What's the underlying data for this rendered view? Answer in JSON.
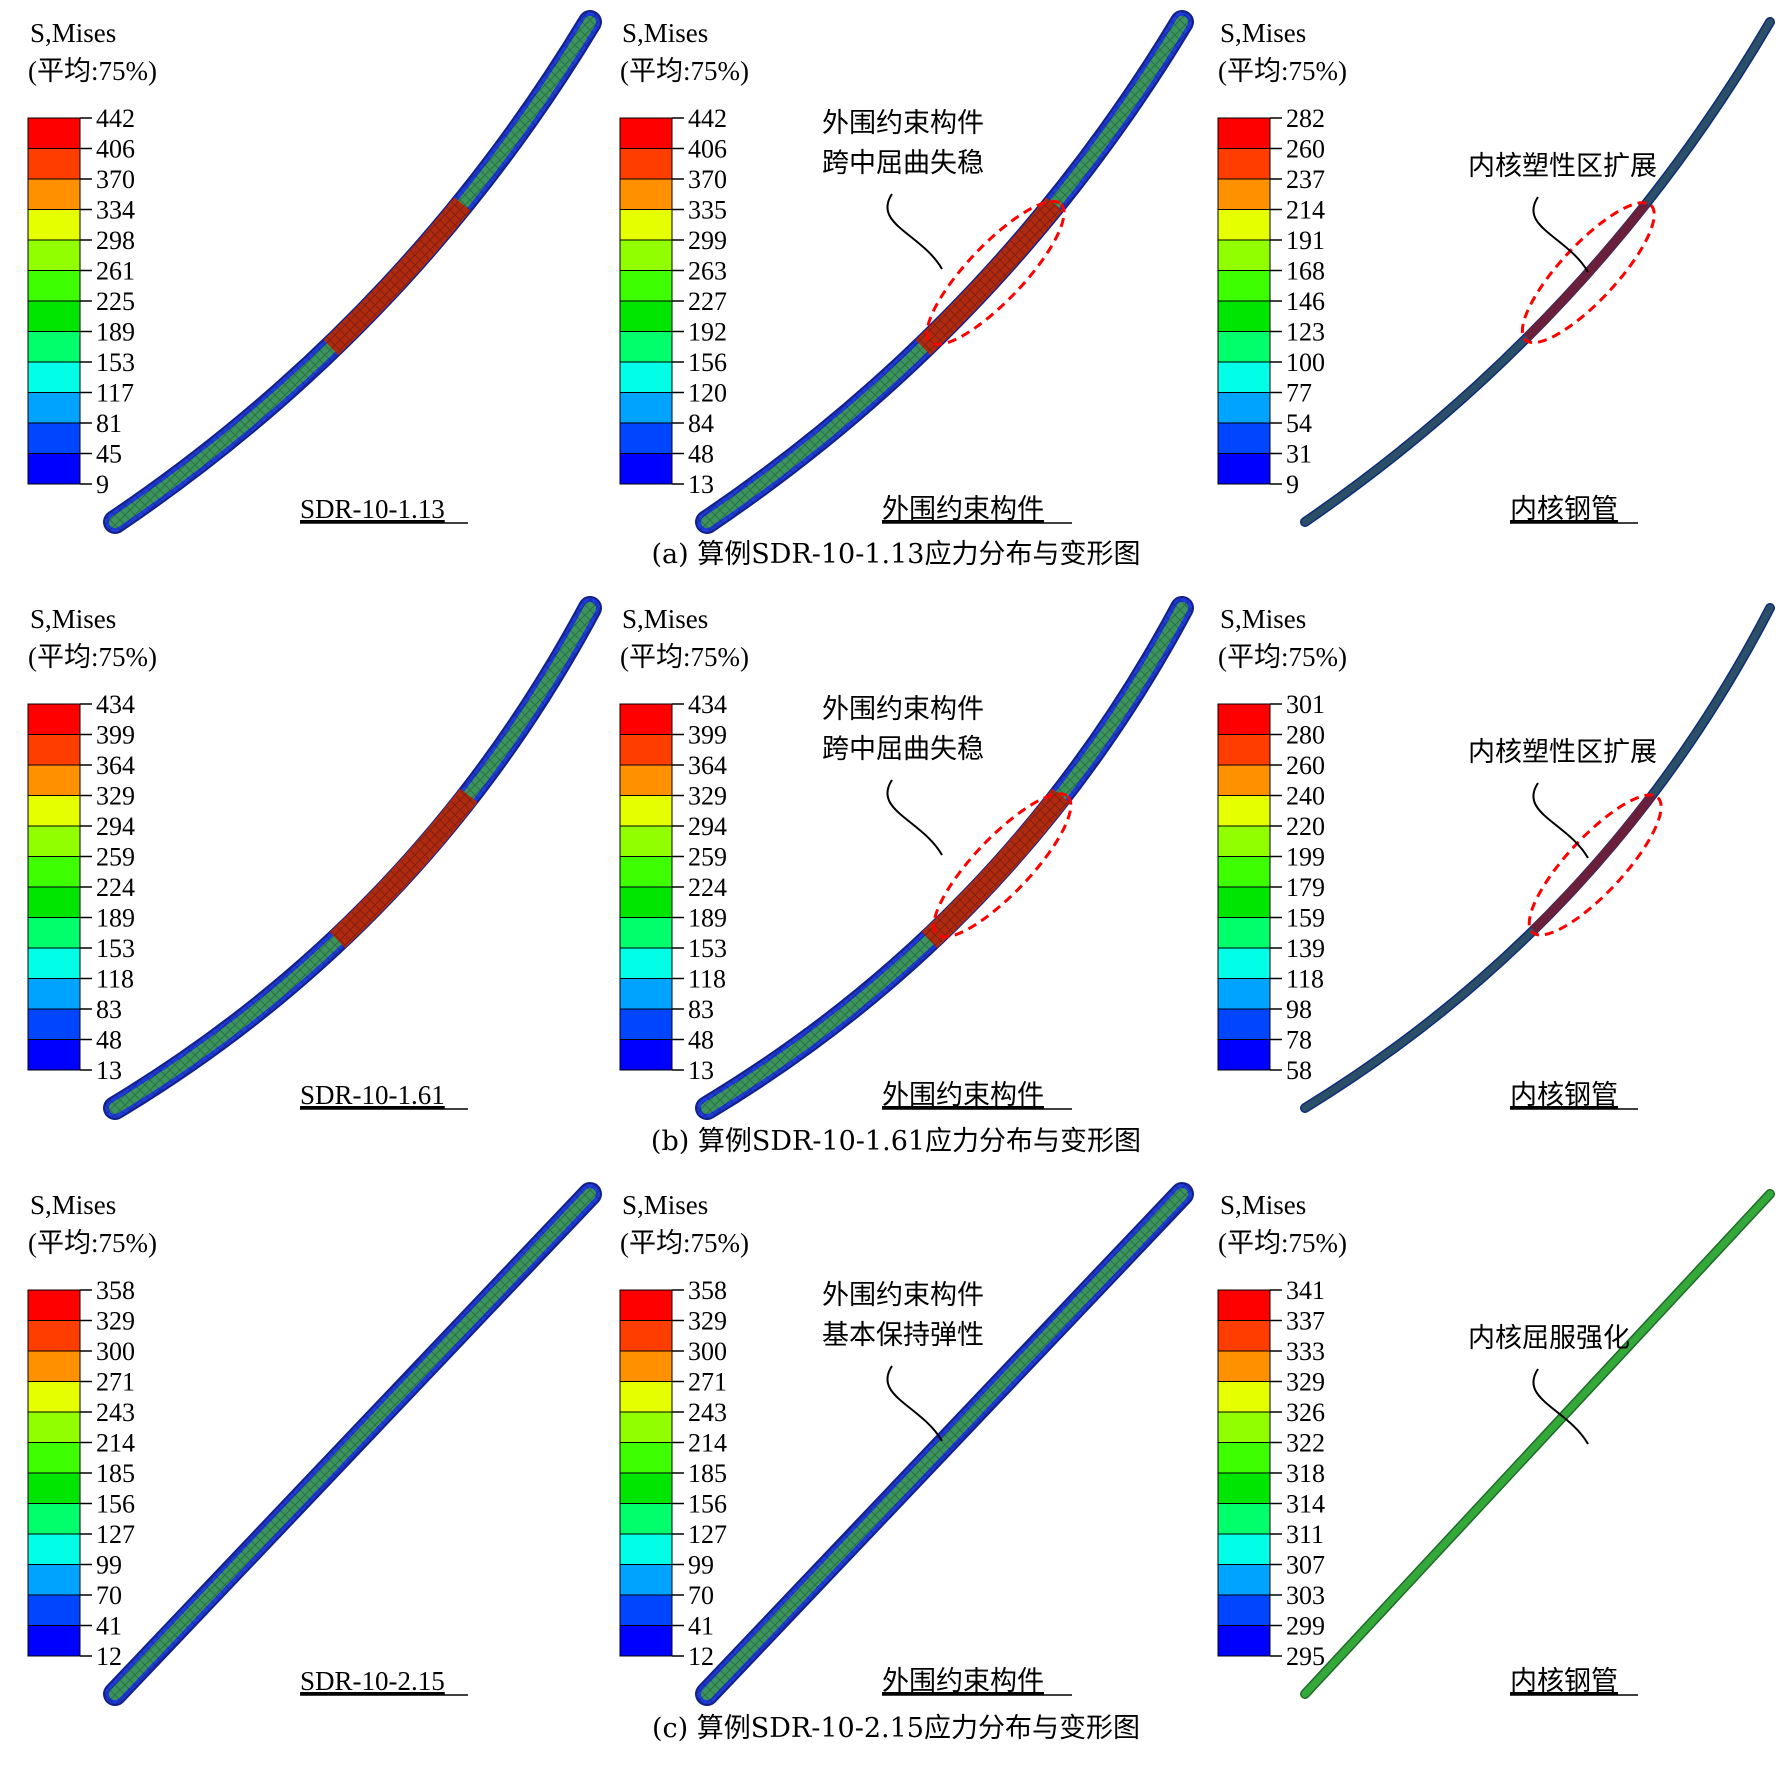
{
  "legend_title": "S,Mises",
  "legend_avg": "(平均:75%)",
  "rows": [
    {
      "caption": "(a) 算例SDR-10-1.13应力分布与变形图",
      "panels": [
        {
          "label": "SDR-10-1.13",
          "legend": [
            "442",
            "406",
            "370",
            "334",
            "298",
            "261",
            "225",
            "189",
            "153",
            "117",
            "81",
            "45",
            "9"
          ],
          "annotation": [],
          "bend": 0.8,
          "tube": "outer"
        },
        {
          "label": "外围约束构件",
          "legend": [
            "442",
            "406",
            "370",
            "335",
            "299",
            "263",
            "227",
            "192",
            "156",
            "120",
            "84",
            "48",
            "13"
          ],
          "annotation": [
            "外围约束构件",
            "跨中屈曲失稳"
          ],
          "bend": 0.8,
          "tube": "outer"
        },
        {
          "label": "内核钢管",
          "legend": [
            "282",
            "260",
            "237",
            "214",
            "191",
            "168",
            "146",
            "123",
            "100",
            "77",
            "54",
            "31",
            "9"
          ],
          "annotation": [
            "内核塑性区扩展"
          ],
          "bend": 0.8,
          "tube": "inner"
        }
      ]
    },
    {
      "caption": "(b) 算例SDR-10-1.61应力分布与变形图",
      "panels": [
        {
          "label": "SDR-10-1.61",
          "legend": [
            "434",
            "399",
            "364",
            "329",
            "294",
            "259",
            "224",
            "189",
            "153",
            "118",
            "83",
            "48",
            "13"
          ],
          "annotation": [],
          "bend": 1.0,
          "tube": "outer"
        },
        {
          "label": "外围约束构件",
          "legend": [
            "434",
            "399",
            "364",
            "329",
            "294",
            "259",
            "224",
            "189",
            "153",
            "118",
            "83",
            "48",
            "13"
          ],
          "annotation": [
            "外围约束构件",
            "跨中屈曲失稳"
          ],
          "bend": 1.0,
          "tube": "outer"
        },
        {
          "label": "内核钢管",
          "legend": [
            "301",
            "280",
            "260",
            "240",
            "220",
            "199",
            "179",
            "159",
            "139",
            "118",
            "98",
            "78",
            "58"
          ],
          "annotation": [
            "内核塑性区扩展"
          ],
          "bend": 1.0,
          "tube": "inner"
        }
      ]
    },
    {
      "caption": "(c) 算例SDR-10-2.15应力分布与变形图",
      "panels": [
        {
          "label": "SDR-10-2.15",
          "legend": [
            "358",
            "329",
            "300",
            "271",
            "243",
            "214",
            "185",
            "156",
            "127",
            "99",
            "70",
            "41",
            "12"
          ],
          "annotation": [],
          "bend": 0.0,
          "tube": "outer"
        },
        {
          "label": "外围约束构件",
          "legend": [
            "358",
            "329",
            "300",
            "271",
            "243",
            "214",
            "185",
            "156",
            "127",
            "99",
            "70",
            "41",
            "12"
          ],
          "annotation": [
            "外围约束构件",
            "基本保持弹性"
          ],
          "bend": 0.0,
          "tube": "outer"
        },
        {
          "label": "内核钢管",
          "legend": [
            "341",
            "337",
            "333",
            "329",
            "326",
            "322",
            "318",
            "314",
            "311",
            "307",
            "303",
            "299",
            "295"
          ],
          "annotation": [
            "内核屈服强化"
          ],
          "bend": 0.0,
          "tube": "inner"
        }
      ]
    }
  ],
  "colors": {
    "legend_scale": [
      "#ff0000",
      "#ff3d00",
      "#ff9100",
      "#e6ff00",
      "#91ff00",
      "#3dff00",
      "#00e600",
      "#00ff6b",
      "#00ffe6",
      "#00a4ff",
      "#0045ff",
      "#0000ff"
    ],
    "tube_outer": "#1f3bd8",
    "tube_stressed": "#b02a10",
    "tube_mid": "#3fa050",
    "tube_inner_core": "#2a4f66",
    "inner_green": "#35a83a",
    "highlight_ellipse": "#ff0000"
  }
}
